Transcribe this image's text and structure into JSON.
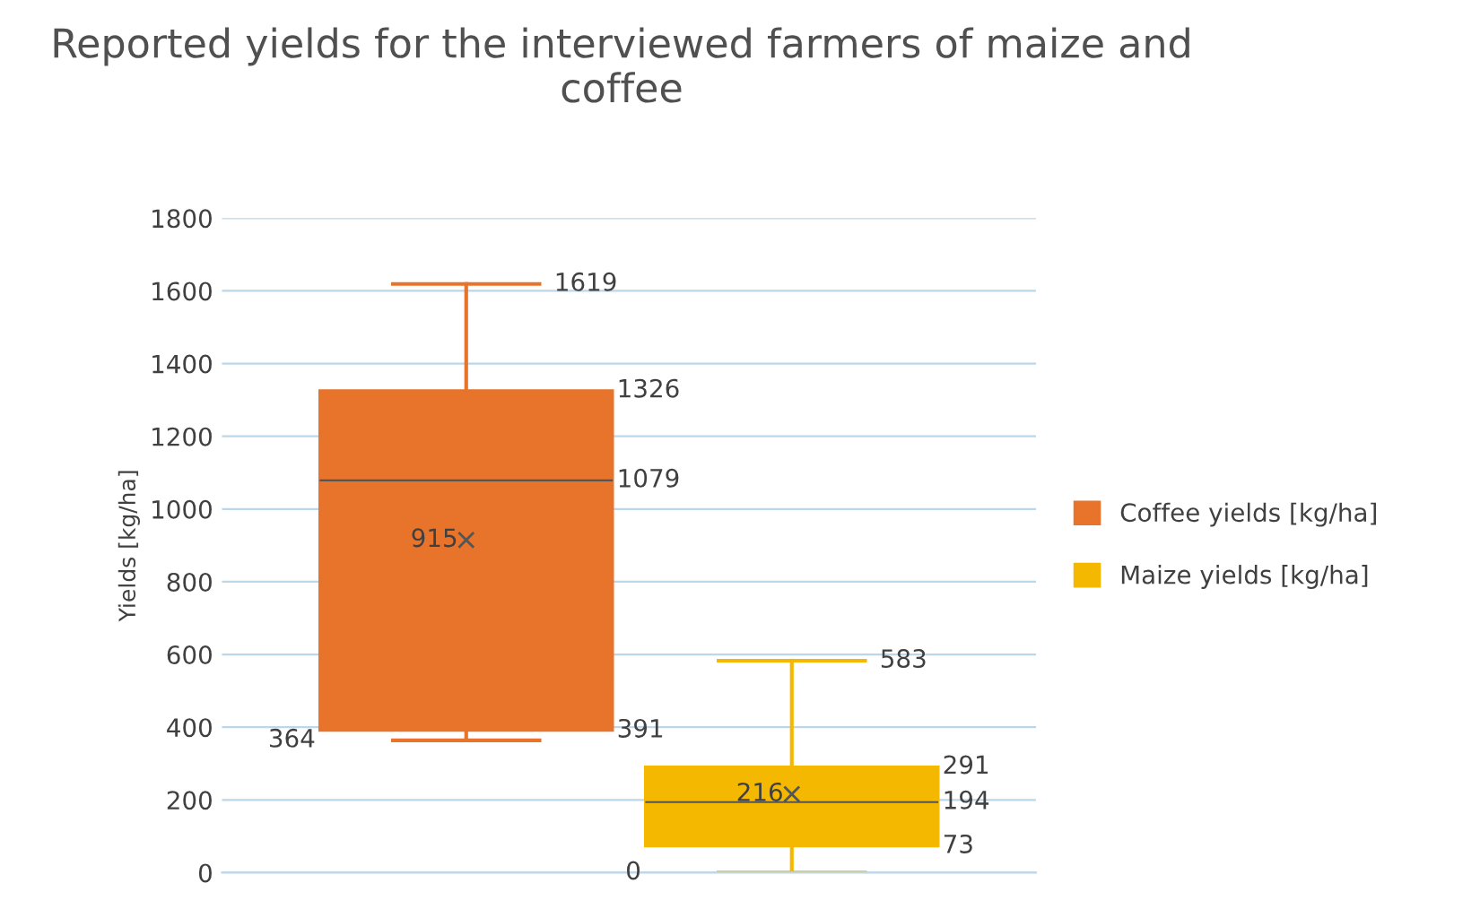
{
  "chart_data": {
    "type": "box",
    "title": "Reported yields for the interviewed farmers of maize and coffee",
    "ylabel": "Yields [kg/ha]",
    "categories": [
      null
    ],
    "series": [
      {
        "name": "Coffee yields [kg/ha]",
        "color": "#e8732a",
        "boxes": [
          {
            "low": 364,
            "q1": 391,
            "median": 1079,
            "q3": 1326,
            "high": 1619,
            "mean": 915
          }
        ]
      },
      {
        "name": "Maize yields [kg/ha]",
        "color": "#f5b800",
        "boxes": [
          {
            "low": 0,
            "q1": 73,
            "median": 194,
            "q3": 291,
            "high": 583,
            "mean": 216
          }
        ]
      }
    ],
    "ylim": [
      0,
      1800
    ],
    "yticks": [
      0,
      200,
      400,
      600,
      800,
      1000,
      1200,
      1400,
      1600,
      1800
    ],
    "grid": "y",
    "legend": "right",
    "annotations": [
      "1619",
      "1326",
      "1079",
      "915",
      "391",
      "364",
      "583",
      "291",
      "216",
      "194",
      "73",
      "0"
    ]
  }
}
